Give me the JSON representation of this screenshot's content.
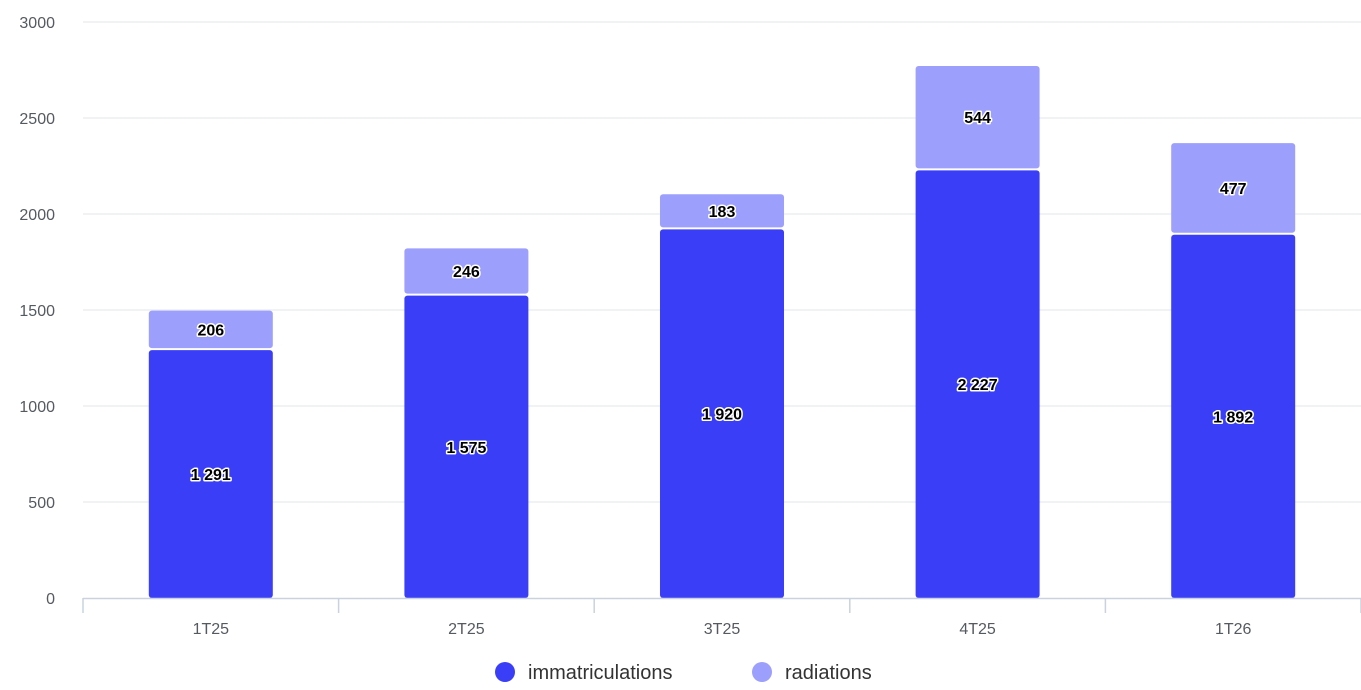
{
  "chart_data": {
    "type": "bar",
    "stacked": true,
    "categories": [
      "1T25",
      "2T25",
      "3T25",
      "4T25",
      "1T26"
    ],
    "series": [
      {
        "name": "immatriculations",
        "color": "#3a3ff7",
        "values": [
          1291,
          1575,
          1920,
          2227,
          1892
        ],
        "labels": [
          "1 291",
          "1 575",
          "1 920",
          "2 227",
          "1 892"
        ]
      },
      {
        "name": "radiations",
        "color": "#9c9ffb",
        "values": [
          206,
          246,
          183,
          544,
          477
        ],
        "labels": [
          "206",
          "246",
          "183",
          "544",
          "477"
        ]
      }
    ],
    "ylim": [
      0,
      3000
    ],
    "yticks": [
      0,
      500,
      1000,
      1500,
      2000,
      2500,
      3000
    ],
    "grid": true,
    "legend_position": "bottom-center"
  }
}
